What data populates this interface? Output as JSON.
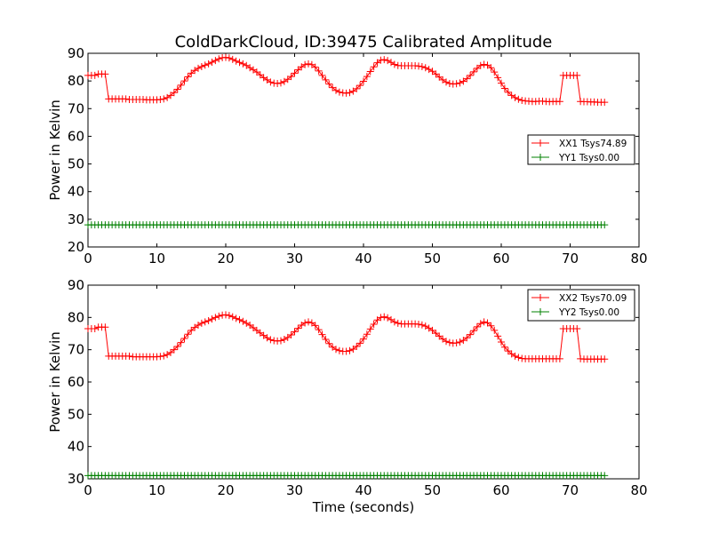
{
  "chart_data": [
    {
      "type": "line",
      "title": "ColdDarkCloud, ID:39475 Calibrated Amplitude",
      "xlabel": "",
      "ylabel": "Power in Kelvin",
      "xlim": [
        0,
        80
      ],
      "ylim": [
        20,
        90
      ],
      "xticks": [
        0,
        10,
        20,
        30,
        40,
        50,
        60,
        70,
        80
      ],
      "yticks": [
        20,
        30,
        40,
        50,
        60,
        70,
        80,
        90
      ],
      "grid": false,
      "legend_position": "right",
      "x_step": 0.5,
      "x_range": [
        0,
        75
      ],
      "series": [
        {
          "name": "XX1 Tsys74.89",
          "color": "#ff0000",
          "marker": "plus",
          "values": [
            82,
            82,
            82,
            82.5,
            82.5,
            82.5,
            73.5,
            73.5,
            73.5,
            73.5,
            73.5,
            73.5,
            73.3,
            73.3,
            73.3,
            73.3,
            73.3,
            73.2,
            73.2,
            73.2,
            73.2,
            73.3,
            73.5,
            74,
            74.8,
            75.8,
            77,
            78.5,
            80,
            81.5,
            82.8,
            83.8,
            84.6,
            85.2,
            85.7,
            86.2,
            86.8,
            87.4,
            88,
            88.4,
            88.5,
            88.3,
            87.8,
            87.2,
            86.7,
            86.2,
            85.6,
            84.8,
            84,
            83.2,
            82.2,
            81.2,
            80.4,
            79.6,
            79.2,
            79.1,
            79.3,
            79.8,
            80.6,
            81.6,
            82.8,
            84,
            85.1,
            85.9,
            86.2,
            85.9,
            85,
            83.6,
            82,
            80.4,
            78.9,
            77.6,
            76.6,
            76,
            75.7,
            75.6,
            75.8,
            76.3,
            77.2,
            78.4,
            79.9,
            81.6,
            83.4,
            85.1,
            86.6,
            87.5,
            87.7,
            87.4,
            86.7,
            86,
            85.6,
            85.5,
            85.5,
            85.5,
            85.5,
            85.5,
            85.4,
            85.2,
            84.8,
            84.2,
            83.5,
            82.5,
            81.4,
            80.4,
            79.6,
            79.1,
            78.9,
            79,
            79.3,
            79.9,
            80.8,
            82,
            83.3,
            84.6,
            85.6,
            86,
            85.7,
            84.8,
            83.2,
            81.2,
            79.2,
            77.3,
            75.9,
            74.8,
            74,
            73.4,
            73,
            72.8,
            72.7,
            72.6,
            72.6,
            72.7,
            72.7,
            72.6,
            72.5,
            72.6,
            72.6,
            72.6,
            82,
            82,
            82,
            82,
            82,
            72.6,
            72.5,
            72.5,
            72.4,
            72.4,
            72.3,
            72.3,
            72.3,
            72.2,
            72.2,
            72.2
          ]
        },
        {
          "name": "YY1 Tsys0.00",
          "color": "#008000",
          "marker": "plus",
          "constant": 28
        }
      ]
    },
    {
      "type": "line",
      "title": "",
      "xlabel": "Time (seconds)",
      "ylabel": "Power in Kelvin",
      "xlim": [
        0,
        80
      ],
      "ylim": [
        30,
        90
      ],
      "xticks": [
        0,
        10,
        20,
        30,
        40,
        50,
        60,
        70,
        80
      ],
      "yticks": [
        30,
        40,
        50,
        60,
        70,
        80,
        90
      ],
      "grid": false,
      "legend_position": "top-right",
      "x_step": 0.5,
      "x_range": [
        0,
        75
      ],
      "series": [
        {
          "name": "XX2 Tsys70.09",
          "color": "#ff0000",
          "marker": "plus",
          "values": [
            76.5,
            76.5,
            76.5,
            77,
            77,
            77,
            68,
            68,
            68,
            68,
            68,
            68,
            68,
            67.8,
            67.8,
            67.8,
            67.8,
            67.8,
            67.8,
            67.8,
            67.8,
            67.9,
            68.1,
            68.5,
            69.1,
            70,
            71,
            72.2,
            73.5,
            74.8,
            76,
            76.9,
            77.6,
            78.2,
            78.6,
            79,
            79.5,
            80,
            80.4,
            80.7,
            80.8,
            80.6,
            80.2,
            79.7,
            79.3,
            78.8,
            78.2,
            77.6,
            76.8,
            76,
            75.2,
            74.4,
            73.7,
            73.1,
            72.8,
            72.7,
            72.8,
            73.2,
            73.8,
            74.6,
            75.6,
            76.6,
            77.6,
            78.3,
            78.6,
            78.3,
            77.5,
            76.2,
            74.7,
            73.2,
            71.9,
            70.8,
            70.1,
            69.7,
            69.5,
            69.5,
            69.7,
            70.2,
            71,
            72,
            73.3,
            74.8,
            76.4,
            77.9,
            79.2,
            80,
            80.2,
            79.9,
            79.3,
            78.6,
            78.2,
            78,
            78,
            78,
            78,
            78,
            77.9,
            77.7,
            77.3,
            76.7,
            76,
            75.1,
            74.2,
            73.3,
            72.6,
            72.2,
            72,
            72.1,
            72.4,
            72.9,
            73.7,
            74.7,
            75.9,
            77.1,
            78.1,
            78.6,
            78.3,
            77.4,
            76,
            74.2,
            72.4,
            70.8,
            69.6,
            68.7,
            68,
            67.6,
            67.3,
            67.2,
            67.2,
            67.2,
            67.2,
            67.2,
            67.2,
            67.2,
            67.2,
            67.2,
            67.2,
            67.2,
            76.5,
            76.5,
            76.5,
            76.5,
            76.5,
            67.2,
            67.1,
            67.1,
            67.1,
            67.1,
            67.1,
            67.1,
            67.1,
            67.1,
            67.1,
            67.1
          ]
        },
        {
          "name": "YY2 Tsys0.00",
          "color": "#008000",
          "marker": "plus",
          "constant": 31
        }
      ]
    }
  ]
}
